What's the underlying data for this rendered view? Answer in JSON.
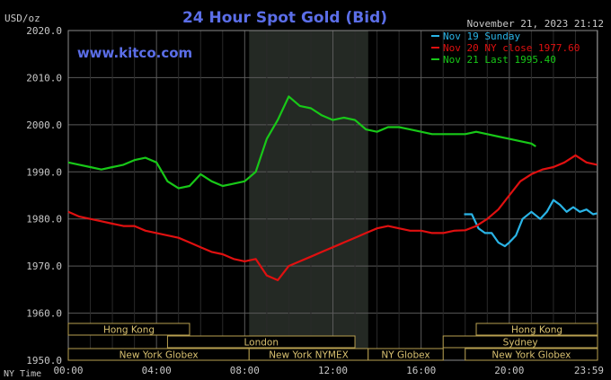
{
  "chart_data": {
    "type": "line",
    "title": "24 Hour Spot Gold (Bid)",
    "watermark": "www.kitco.com",
    "timestamp": "November 21, 2023 21:12",
    "ylabel": "USD/oz",
    "xlabel": "NY Time",
    "ylim": [
      1950,
      2020
    ],
    "xlim": [
      0,
      24
    ],
    "y_ticks": [
      "2020.0",
      "2010.0",
      "2000.0",
      "1990.0",
      "1980.0",
      "1970.0",
      "1960.0",
      "1950.0"
    ],
    "x_ticks": [
      "00:00",
      "04:00",
      "08:00",
      "12:00",
      "16:00",
      "20:00",
      "23:59"
    ],
    "grid": true,
    "legend_position": "top-right",
    "background": "#000000",
    "highlight_band_hours": [
      8.2,
      13.6
    ],
    "series": [
      {
        "name": "Nov 19 Sunday",
        "legend": "Nov 19 Sunday",
        "color": "#2ab4e6",
        "x": [
          17.95,
          18.3,
          18.6,
          18.9,
          19.2,
          19.5,
          19.8,
          20.0,
          20.3,
          20.6,
          21.0,
          21.4,
          21.7,
          22.0,
          22.3,
          22.6,
          22.9,
          23.2,
          23.5,
          23.8,
          23.98
        ],
        "y": [
          1981.0,
          1981.0,
          1978.0,
          1977.0,
          1977.0,
          1975.0,
          1974.2,
          1975.0,
          1976.5,
          1980.0,
          1981.5,
          1980.0,
          1981.5,
          1984.0,
          1983.0,
          1981.5,
          1982.5,
          1981.5,
          1982.0,
          1981.0,
          1981.2
        ]
      },
      {
        "name": "Nov 20 NY close 1977.60",
        "legend": "Nov 20 NY close 1977.60",
        "color": "#e01010",
        "x": [
          0.0,
          0.5,
          1.0,
          1.5,
          2.0,
          2.5,
          3.0,
          3.5,
          4.0,
          4.5,
          5.0,
          5.5,
          6.0,
          6.5,
          7.0,
          7.5,
          8.0,
          8.5,
          9.0,
          9.5,
          10.0,
          10.5,
          11.0,
          11.5,
          12.0,
          12.5,
          13.0,
          13.5,
          14.0,
          14.5,
          15.0,
          15.5,
          16.0,
          16.5,
          17.0,
          17.5,
          18.0,
          18.5,
          19.0,
          19.5,
          20.0,
          20.5,
          21.0,
          21.5,
          22.0,
          22.5,
          23.0,
          23.5,
          23.98
        ],
        "y": [
          1981.5,
          1980.5,
          1980.0,
          1979.5,
          1979.0,
          1978.5,
          1978.5,
          1977.5,
          1977.0,
          1976.5,
          1976.0,
          1975.0,
          1974.0,
          1973.0,
          1972.5,
          1971.5,
          1971.0,
          1971.5,
          1968.0,
          1967.0,
          1970.0,
          1971.0,
          1972.0,
          1973.0,
          1974.0,
          1975.0,
          1976.0,
          1977.0,
          1978.0,
          1978.5,
          1978.0,
          1977.5,
          1977.5,
          1977.0,
          1977.0,
          1977.5,
          1977.6,
          1978.5,
          1980.0,
          1982.0,
          1985.0,
          1988.0,
          1989.5,
          1990.5,
          1991.0,
          1992.0,
          1993.5,
          1992.0,
          1991.5
        ]
      },
      {
        "name": "Nov 21 Last 1995.40",
        "legend": "Nov 21 Last 1995.40",
        "color": "#18c818",
        "x": [
          0.0,
          0.5,
          1.0,
          1.5,
          2.0,
          2.5,
          3.0,
          3.5,
          4.0,
          4.5,
          5.0,
          5.5,
          6.0,
          6.5,
          7.0,
          7.5,
          8.0,
          8.5,
          9.0,
          9.5,
          10.0,
          10.5,
          11.0,
          11.5,
          12.0,
          12.5,
          13.0,
          13.5,
          14.0,
          14.5,
          15.0,
          15.5,
          16.0,
          16.5,
          17.0,
          17.5,
          18.0,
          18.5,
          19.0,
          19.5,
          20.0,
          20.5,
          21.0,
          21.2
        ],
        "y": [
          1992.0,
          1991.5,
          1991.0,
          1990.5,
          1991.0,
          1991.5,
          1992.5,
          1993.0,
          1992.0,
          1988.0,
          1986.5,
          1987.0,
          1989.5,
          1988.0,
          1987.0,
          1987.5,
          1988.0,
          1990.0,
          1997.0,
          2001.0,
          2006.0,
          2004.0,
          2003.5,
          2002.0,
          2001.0,
          2001.5,
          2001.0,
          1999.0,
          1998.5,
          1999.5,
          1999.5,
          1999.0,
          1998.5,
          1998.0,
          1998.0,
          1998.0,
          1998.0,
          1998.5,
          1998.0,
          1997.5,
          1997.0,
          1996.5,
          1996.0,
          1995.4
        ]
      }
    ],
    "sessions": [
      {
        "label": "Hong Kong",
        "row": 1,
        "start": 0.0,
        "end": 5.5
      },
      {
        "label": "Hong Kong",
        "row": 1,
        "start": 18.5,
        "end": 24.0
      },
      {
        "label": "London",
        "row": 2,
        "start": 4.5,
        "end": 13.0
      },
      {
        "label": "Sydney",
        "row": 2,
        "start": 17.0,
        "end": 24.0
      },
      {
        "label": "New York Globex",
        "row": 3,
        "start": 0.0,
        "end": 8.2
      },
      {
        "label": "New York NYMEX",
        "row": 3,
        "start": 8.2,
        "end": 13.6
      },
      {
        "label": "NY Globex",
        "row": 3,
        "start": 13.6,
        "end": 17.0
      },
      {
        "label": "New York Globex",
        "row": 3,
        "start": 18.0,
        "end": 24.0
      }
    ]
  }
}
